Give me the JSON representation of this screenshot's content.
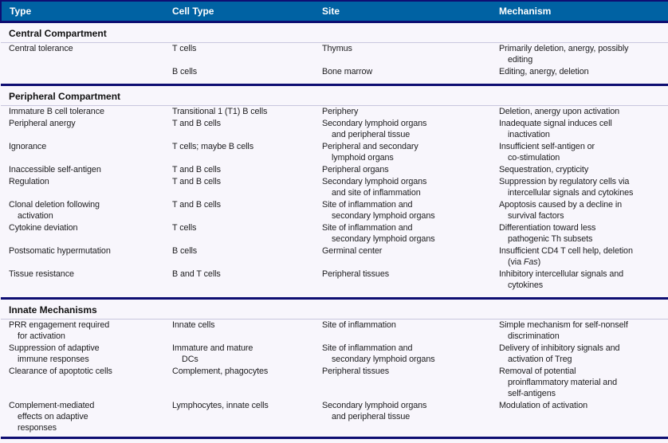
{
  "table": {
    "columns": [
      "Type",
      "Cell Type",
      "Site",
      "Mechanism"
    ],
    "colors": {
      "header_bg": "#0062a3",
      "header_text": "#ffffff",
      "border_navy": "#0e0e72",
      "rule_light": "#c9c7de",
      "body_text": "#1d1d1f",
      "page_bg": "#f8f6fc"
    },
    "sections": [
      {
        "title": "Central Compartment",
        "rows": [
          {
            "type": "Central tolerance",
            "cell_type": "T cells",
            "site": "Thymus",
            "mechanism": "Primarily deletion, anergy, possibly\nediting"
          },
          {
            "type": "",
            "cell_type": "B cells",
            "site": "Bone marrow",
            "mechanism": "Editing, anergy, deletion"
          }
        ]
      },
      {
        "title": "Peripheral Compartment",
        "rows": [
          {
            "type": "Immature B cell tolerance",
            "cell_type": "Transitional 1 (T1) B cells",
            "site": "Periphery",
            "mechanism": "Deletion, anergy upon activation"
          },
          {
            "type": "Peripheral anergy",
            "cell_type": "T and B cells",
            "site": "Secondary lymphoid organs\nand peripheral tissue",
            "mechanism": "Inadequate signal induces cell\ninactivation"
          },
          {
            "type": "Ignorance",
            "cell_type": "T cells; maybe B cells",
            "site": "Peripheral and secondary\nlymphoid organs",
            "mechanism": "Insufficient self-antigen or\nco-stimulation"
          },
          {
            "type": "Inaccessible self-antigen",
            "cell_type": "T and B cells",
            "site": "Peripheral organs",
            "mechanism": "Sequestration, crypticity"
          },
          {
            "type": "Regulation",
            "cell_type": "T and B cells",
            "site": "Secondary lymphoid organs\nand site of inflammation",
            "mechanism": "Suppression by regulatory cells via\nintercellular signals and cytokines"
          },
          {
            "type": "Clonal deletion following\nactivation",
            "cell_type": "T and B cells",
            "site": "Site of inflammation and\nsecondary lymphoid organs",
            "mechanism": "Apoptosis caused by a decline in\nsurvival factors"
          },
          {
            "type": "Cytokine deviation",
            "cell_type": "T cells",
            "site": "Site of inflammation and\nsecondary lymphoid organs",
            "mechanism": "Differentiation toward less\npathogenic Th subsets"
          },
          {
            "type": "Postsomatic hypermutation",
            "cell_type": "B cells",
            "site": "Germinal center",
            "mechanism_pre": "Insufficient CD4 T cell help, deletion\n(via ",
            "mechanism_italic": "Fas",
            "mechanism_post": ")"
          },
          {
            "type": "Tissue resistance",
            "cell_type": "B and T cells",
            "site": "Peripheral tissues",
            "mechanism": "Inhibitory intercellular signals and\ncytokines"
          }
        ]
      },
      {
        "title": "Innate Mechanisms",
        "rows": [
          {
            "type": "PRR engagement required\nfor activation",
            "cell_type": "Innate cells",
            "site": "Site of inflammation",
            "mechanism": "Simple mechanism for self-nonself\ndiscrimination"
          },
          {
            "type": "Suppression of adaptive\nimmune responses",
            "cell_type": "Immature and mature\nDCs",
            "site": "Site of inflammation and\nsecondary lymphoid organs",
            "mechanism": "Delivery of inhibitory signals and\nactivation of Treg"
          },
          {
            "type": "Clearance of apoptotic cells",
            "cell_type": "Complement, phagocytes",
            "site": "Peripheral tissues",
            "mechanism": "Removal of potential\nproinflammatory material and\nself-antigens"
          },
          {
            "type": "Complement-mediated\neffects on adaptive\nresponses",
            "cell_type": "Lymphocytes, innate cells",
            "site": "Secondary lymphoid organs\nand peripheral tissue",
            "mechanism": "Modulation of activation"
          }
        ]
      }
    ]
  }
}
